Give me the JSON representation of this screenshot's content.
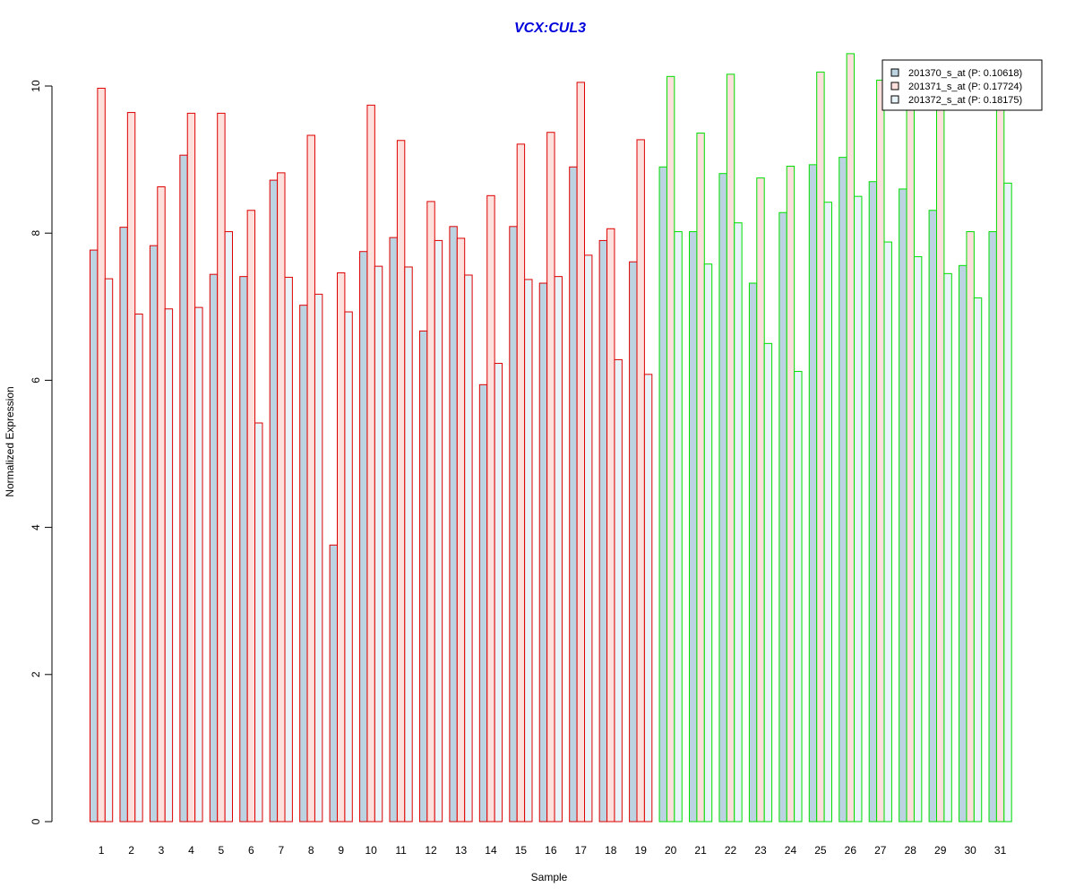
{
  "chart_data": {
    "type": "bar",
    "title": "VCX:CUL3",
    "xlabel": "Sample",
    "ylabel": "Normalized Expression",
    "ylim": [
      0,
      10.5
    ],
    "yticks": [
      0,
      2,
      4,
      6,
      8,
      10
    ],
    "grid": false,
    "legend_position": "top-right",
    "categories": [
      "1",
      "2",
      "3",
      "4",
      "5",
      "6",
      "7",
      "8",
      "9",
      "10",
      "11",
      "12",
      "13",
      "14",
      "15",
      "16",
      "17",
      "18",
      "19",
      "20",
      "21",
      "22",
      "23",
      "24",
      "25",
      "26",
      "27",
      "28",
      "29",
      "30",
      "31"
    ],
    "groups": [
      {
        "samples": "1-19",
        "border_color": "#dd0000"
      },
      {
        "samples": "20-31",
        "border_color": "#00dd00"
      }
    ],
    "series": [
      {
        "name": "201370_s_at (P: 0.10618)",
        "fill": "#bcd3e2",
        "values": [
          7.77,
          8.08,
          7.83,
          9.06,
          7.44,
          7.41,
          8.72,
          7.02,
          3.76,
          7.75,
          7.94,
          6.67,
          8.09,
          5.94,
          8.09,
          7.32,
          8.9,
          7.9,
          7.61,
          8.9,
          8.02,
          8.81,
          7.32,
          8.28,
          8.93,
          9.03,
          8.7,
          8.6,
          8.31,
          7.56,
          8.02
        ]
      },
      {
        "name": "201371_s_at (P: 0.17724)",
        "fill": "#fde0dc",
        "values": [
          9.97,
          9.64,
          8.63,
          9.63,
          9.63,
          8.31,
          8.82,
          9.33,
          7.46,
          9.74,
          9.26,
          8.43,
          7.93,
          8.51,
          9.21,
          9.37,
          10.05,
          8.06,
          9.27,
          10.13,
          9.36,
          10.16,
          8.75,
          8.91,
          10.19,
          10.44,
          10.08,
          9.76,
          9.76,
          8.02,
          9.82
        ]
      },
      {
        "name": "201372_s_at (P: 0.18175)",
        "fill": "#e8f4f9",
        "values": [
          7.38,
          6.9,
          6.97,
          6.99,
          8.02,
          5.42,
          7.4,
          7.17,
          6.93,
          7.55,
          7.54,
          7.9,
          7.43,
          6.23,
          7.37,
          7.41,
          7.7,
          6.28,
          6.08,
          8.02,
          7.58,
          8.14,
          6.5,
          6.12,
          8.42,
          8.5,
          7.88,
          7.68,
          7.45,
          7.12,
          8.68
        ]
      }
    ]
  }
}
